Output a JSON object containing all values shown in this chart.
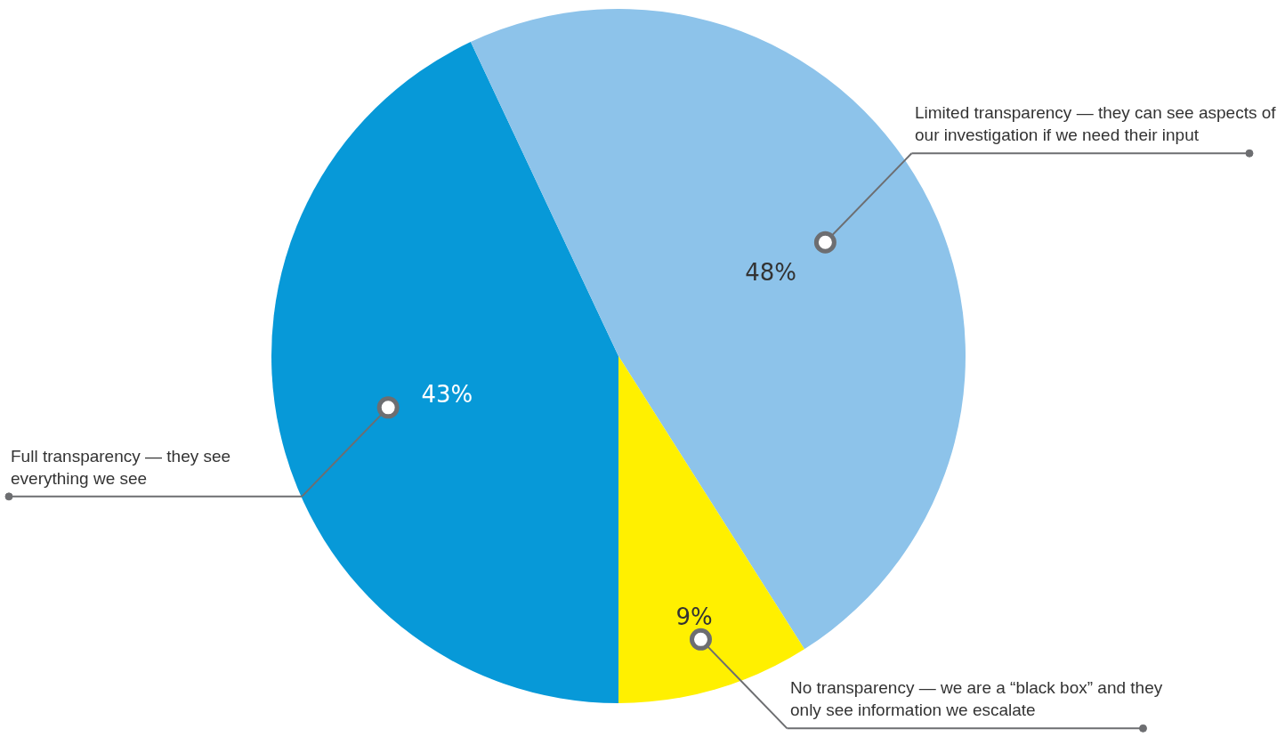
{
  "chart_data": {
    "type": "pie",
    "categories": [
      "Full transparency — they see everything we see",
      "Limited transparency — they can see aspects of our investigation if we need their input",
      "No transparency — we are a “black box” and they only see information we escalate"
    ],
    "values": [
      43,
      48,
      9
    ],
    "value_labels": [
      "43%",
      "48%",
      "9%"
    ],
    "colors": [
      "#0799d8",
      "#8dc3ea",
      "#fff000"
    ],
    "legend": false
  }
}
